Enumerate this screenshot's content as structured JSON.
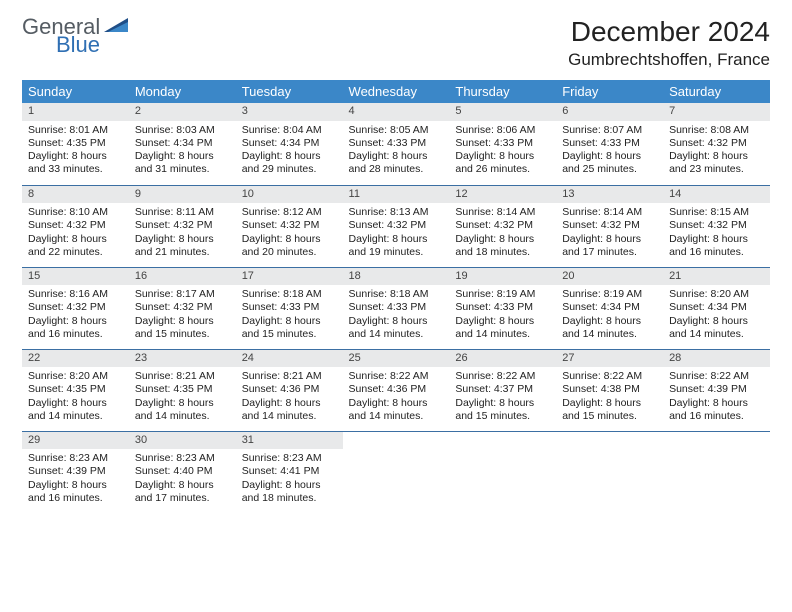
{
  "logo": {
    "text_general": "General",
    "text_blue": "Blue",
    "gray": "#555c63",
    "blue": "#2f6fb3",
    "tri_dark": "#1f4e87",
    "tri_light": "#3b87c8"
  },
  "header": {
    "month_title": "December 2024",
    "location": "Gumbrechtshoffen, France"
  },
  "colors": {
    "header_bg": "#3b87c8",
    "header_fg": "#ffffff",
    "daynum_bg": "#e8e9ea",
    "row_border": "#3b6fa3"
  },
  "weekdays": [
    "Sunday",
    "Monday",
    "Tuesday",
    "Wednesday",
    "Thursday",
    "Friday",
    "Saturday"
  ],
  "weeks": [
    [
      {
        "n": "1",
        "sr": "8:01 AM",
        "ss": "4:35 PM",
        "dl": "8 hours and 33 minutes."
      },
      {
        "n": "2",
        "sr": "8:03 AM",
        "ss": "4:34 PM",
        "dl": "8 hours and 31 minutes."
      },
      {
        "n": "3",
        "sr": "8:04 AM",
        "ss": "4:34 PM",
        "dl": "8 hours and 29 minutes."
      },
      {
        "n": "4",
        "sr": "8:05 AM",
        "ss": "4:33 PM",
        "dl": "8 hours and 28 minutes."
      },
      {
        "n": "5",
        "sr": "8:06 AM",
        "ss": "4:33 PM",
        "dl": "8 hours and 26 minutes."
      },
      {
        "n": "6",
        "sr": "8:07 AM",
        "ss": "4:33 PM",
        "dl": "8 hours and 25 minutes."
      },
      {
        "n": "7",
        "sr": "8:08 AM",
        "ss": "4:32 PM",
        "dl": "8 hours and 23 minutes."
      }
    ],
    [
      {
        "n": "8",
        "sr": "8:10 AM",
        "ss": "4:32 PM",
        "dl": "8 hours and 22 minutes."
      },
      {
        "n": "9",
        "sr": "8:11 AM",
        "ss": "4:32 PM",
        "dl": "8 hours and 21 minutes."
      },
      {
        "n": "10",
        "sr": "8:12 AM",
        "ss": "4:32 PM",
        "dl": "8 hours and 20 minutes."
      },
      {
        "n": "11",
        "sr": "8:13 AM",
        "ss": "4:32 PM",
        "dl": "8 hours and 19 minutes."
      },
      {
        "n": "12",
        "sr": "8:14 AM",
        "ss": "4:32 PM",
        "dl": "8 hours and 18 minutes."
      },
      {
        "n": "13",
        "sr": "8:14 AM",
        "ss": "4:32 PM",
        "dl": "8 hours and 17 minutes."
      },
      {
        "n": "14",
        "sr": "8:15 AM",
        "ss": "4:32 PM",
        "dl": "8 hours and 16 minutes."
      }
    ],
    [
      {
        "n": "15",
        "sr": "8:16 AM",
        "ss": "4:32 PM",
        "dl": "8 hours and 16 minutes."
      },
      {
        "n": "16",
        "sr": "8:17 AM",
        "ss": "4:32 PM",
        "dl": "8 hours and 15 minutes."
      },
      {
        "n": "17",
        "sr": "8:18 AM",
        "ss": "4:33 PM",
        "dl": "8 hours and 15 minutes."
      },
      {
        "n": "18",
        "sr": "8:18 AM",
        "ss": "4:33 PM",
        "dl": "8 hours and 14 minutes."
      },
      {
        "n": "19",
        "sr": "8:19 AM",
        "ss": "4:33 PM",
        "dl": "8 hours and 14 minutes."
      },
      {
        "n": "20",
        "sr": "8:19 AM",
        "ss": "4:34 PM",
        "dl": "8 hours and 14 minutes."
      },
      {
        "n": "21",
        "sr": "8:20 AM",
        "ss": "4:34 PM",
        "dl": "8 hours and 14 minutes."
      }
    ],
    [
      {
        "n": "22",
        "sr": "8:20 AM",
        "ss": "4:35 PM",
        "dl": "8 hours and 14 minutes."
      },
      {
        "n": "23",
        "sr": "8:21 AM",
        "ss": "4:35 PM",
        "dl": "8 hours and 14 minutes."
      },
      {
        "n": "24",
        "sr": "8:21 AM",
        "ss": "4:36 PM",
        "dl": "8 hours and 14 minutes."
      },
      {
        "n": "25",
        "sr": "8:22 AM",
        "ss": "4:36 PM",
        "dl": "8 hours and 14 minutes."
      },
      {
        "n": "26",
        "sr": "8:22 AM",
        "ss": "4:37 PM",
        "dl": "8 hours and 15 minutes."
      },
      {
        "n": "27",
        "sr": "8:22 AM",
        "ss": "4:38 PM",
        "dl": "8 hours and 15 minutes."
      },
      {
        "n": "28",
        "sr": "8:22 AM",
        "ss": "4:39 PM",
        "dl": "8 hours and 16 minutes."
      }
    ],
    [
      {
        "n": "29",
        "sr": "8:23 AM",
        "ss": "4:39 PM",
        "dl": "8 hours and 16 minutes."
      },
      {
        "n": "30",
        "sr": "8:23 AM",
        "ss": "4:40 PM",
        "dl": "8 hours and 17 minutes."
      },
      {
        "n": "31",
        "sr": "8:23 AM",
        "ss": "4:41 PM",
        "dl": "8 hours and 18 minutes."
      },
      null,
      null,
      null,
      null
    ]
  ],
  "labels": {
    "sunrise": "Sunrise: ",
    "sunset": "Sunset: ",
    "daylight": "Daylight: "
  }
}
